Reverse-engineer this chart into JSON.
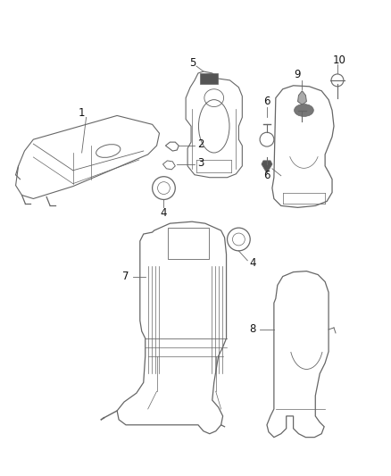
{
  "background_color": "#ffffff",
  "fig_width": 4.38,
  "fig_height": 5.33,
  "dpi": 100,
  "line_color": "#666666",
  "text_color": "#111111",
  "label_fontsize": 8.5
}
